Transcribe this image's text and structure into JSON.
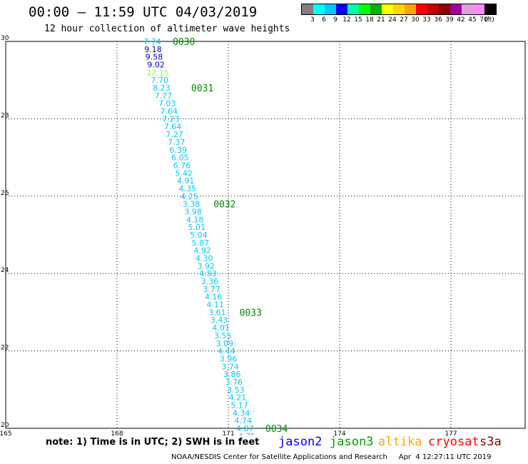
{
  "header": {
    "title": "00:00 – 11:59 UTC 04/03/2019",
    "subtitle": "12 hour collection of altimeter wave heights"
  },
  "color_scale": {
    "colors": [
      "#808080",
      "#00ffff",
      "#00c8ff",
      "#0000ff",
      "#00ffaa",
      "#00ff00",
      "#00b400",
      "#ffff00",
      "#ffd700",
      "#ffa500",
      "#ff0000",
      "#c80000",
      "#8b0000",
      "#a000a0",
      "#dda0dd",
      "#ff88ff",
      "#000000"
    ],
    "labels": [
      "3",
      "6",
      "9",
      "12",
      "15",
      "18",
      "21",
      "24",
      "27",
      "30",
      "33",
      "36",
      "39",
      "42",
      "45",
      "70",
      "(ft)"
    ]
  },
  "chart_data": {
    "type": "scatter",
    "title": "12 hour collection of altimeter wave heights",
    "x_ticks": [
      "165",
      "168",
      "171",
      "174",
      "177"
    ],
    "y_ticks": [
      "20",
      "22",
      "24",
      "26",
      "28",
      "30"
    ],
    "xlim": [
      165,
      179
    ],
    "ylim": [
      20,
      30
    ],
    "grid": true,
    "points": [
      {
        "lon": 168.95,
        "lat": 30.0,
        "value": "7.74",
        "color": "#00c8ff"
      },
      {
        "lon": 168.97,
        "lat": 29.8,
        "value": "9.18",
        "color": "#0000c8"
      },
      {
        "lon": 169.0,
        "lat": 29.6,
        "value": "9.58",
        "color": "#0000c8"
      },
      {
        "lon": 169.05,
        "lat": 29.4,
        "value": "9.02",
        "color": "#0000c8"
      },
      {
        "lon": 169.1,
        "lat": 29.2,
        "value": "12.15",
        "color": "#88ff44"
      },
      {
        "lon": 169.15,
        "lat": 29.0,
        "value": "7.70",
        "color": "#00c8ff"
      },
      {
        "lon": 169.2,
        "lat": 28.8,
        "value": "8.23",
        "color": "#00c8ff"
      },
      {
        "lon": 169.25,
        "lat": 28.6,
        "value": "7.77",
        "color": "#00c8ff"
      },
      {
        "lon": 169.35,
        "lat": 28.4,
        "value": "7.03",
        "color": "#00c8ff"
      },
      {
        "lon": 169.4,
        "lat": 28.2,
        "value": "7.64",
        "color": "#00c8ff"
      },
      {
        "lon": 169.45,
        "lat": 28.0,
        "value": "7.23",
        "color": "#00c8ff"
      },
      {
        "lon": 169.5,
        "lat": 27.8,
        "value": "7.64",
        "color": "#00c8ff"
      },
      {
        "lon": 169.55,
        "lat": 27.6,
        "value": "7.27",
        "color": "#00c8ff"
      },
      {
        "lon": 169.6,
        "lat": 27.4,
        "value": "7.37",
        "color": "#00c8ff"
      },
      {
        "lon": 169.65,
        "lat": 27.2,
        "value": "6.39",
        "color": "#00c8ff"
      },
      {
        "lon": 169.7,
        "lat": 27.0,
        "value": "6.05",
        "color": "#00c8ff"
      },
      {
        "lon": 169.75,
        "lat": 26.8,
        "value": "6.76",
        "color": "#00c8ff"
      },
      {
        "lon": 169.8,
        "lat": 26.6,
        "value": "5.42",
        "color": "#00c8ff"
      },
      {
        "lon": 169.85,
        "lat": 26.4,
        "value": "4.91",
        "color": "#00c8ff"
      },
      {
        "lon": 169.9,
        "lat": 26.2,
        "value": "4.35",
        "color": "#00c8ff"
      },
      {
        "lon": 169.95,
        "lat": 26.0,
        "value": "4.25",
        "color": "#00c8ff"
      },
      {
        "lon": 170.0,
        "lat": 25.8,
        "value": "3.38",
        "color": "#00c8ff"
      },
      {
        "lon": 170.05,
        "lat": 25.6,
        "value": "3.98",
        "color": "#00c8ff"
      },
      {
        "lon": 170.1,
        "lat": 25.4,
        "value": "4.18",
        "color": "#00c8ff"
      },
      {
        "lon": 170.15,
        "lat": 25.2,
        "value": "5.01",
        "color": "#00c8ff"
      },
      {
        "lon": 170.2,
        "lat": 25.0,
        "value": "5.04",
        "color": "#00c8ff"
      },
      {
        "lon": 170.25,
        "lat": 24.8,
        "value": "5.87",
        "color": "#00c8ff"
      },
      {
        "lon": 170.3,
        "lat": 24.6,
        "value": "4.92",
        "color": "#00c8ff"
      },
      {
        "lon": 170.35,
        "lat": 24.4,
        "value": "4.30",
        "color": "#00c8ff"
      },
      {
        "lon": 170.4,
        "lat": 24.2,
        "value": "3.92",
        "color": "#00c8ff"
      },
      {
        "lon": 170.45,
        "lat": 24.0,
        "value": "4.83",
        "color": "#00c8ff"
      },
      {
        "lon": 170.5,
        "lat": 23.8,
        "value": "3.36",
        "color": "#00c8ff"
      },
      {
        "lon": 170.55,
        "lat": 23.6,
        "value": "3.77",
        "color": "#00c8ff"
      },
      {
        "lon": 170.6,
        "lat": 23.4,
        "value": "4.16",
        "color": "#00c8ff"
      },
      {
        "lon": 170.65,
        "lat": 23.2,
        "value": "4.11",
        "color": "#00c8ff"
      },
      {
        "lon": 170.7,
        "lat": 23.0,
        "value": "3.61",
        "color": "#00c8ff"
      },
      {
        "lon": 170.75,
        "lat": 22.8,
        "value": "3.43",
        "color": "#00c8ff"
      },
      {
        "lon": 170.8,
        "lat": 22.6,
        "value": "4.01",
        "color": "#00c8ff"
      },
      {
        "lon": 170.85,
        "lat": 22.4,
        "value": "3.55",
        "color": "#00c8ff"
      },
      {
        "lon": 170.9,
        "lat": 22.2,
        "value": "3.09",
        "color": "#00c8ff"
      },
      {
        "lon": 170.95,
        "lat": 22.0,
        "value": "4.44",
        "color": "#00c8ff"
      },
      {
        "lon": 171.0,
        "lat": 21.8,
        "value": "3.96",
        "color": "#00c8ff"
      },
      {
        "lon": 171.05,
        "lat": 21.6,
        "value": "3.74",
        "color": "#00c8ff"
      },
      {
        "lon": 171.1,
        "lat": 21.4,
        "value": "3.86",
        "color": "#00c8ff"
      },
      {
        "lon": 171.15,
        "lat": 21.2,
        "value": "3.76",
        "color": "#00c8ff"
      },
      {
        "lon": 171.2,
        "lat": 21.0,
        "value": "3.53",
        "color": "#00c8ff"
      },
      {
        "lon": 171.25,
        "lat": 20.8,
        "value": "4.21",
        "color": "#00c8ff"
      },
      {
        "lon": 171.3,
        "lat": 20.6,
        "value": "5.17",
        "color": "#00c8ff"
      },
      {
        "lon": 171.35,
        "lat": 20.4,
        "value": "4.34",
        "color": "#00c8ff"
      },
      {
        "lon": 171.4,
        "lat": 20.2,
        "value": "4.74",
        "color": "#00c8ff"
      },
      {
        "lon": 171.45,
        "lat": 20.0,
        "value": "4.87",
        "color": "#00c8ff"
      },
      {
        "lon": 171.5,
        "lat": 19.8,
        "value": "4.75",
        "color": "#00c8ff"
      }
    ],
    "time_marks": [
      {
        "lon": 169.5,
        "lat": 30.0,
        "label": "0030"
      },
      {
        "lon": 170.0,
        "lat": 28.8,
        "label": "0031"
      },
      {
        "lon": 170.6,
        "lat": 25.8,
        "label": "0032"
      },
      {
        "lon": 171.3,
        "lat": 23.0,
        "label": "0033"
      },
      {
        "lon": 172.0,
        "lat": 20.0,
        "label": "0034"
      }
    ]
  },
  "footer": {
    "note": "note:  1) Time is in UTC;  2) SWH is in feet",
    "satellites": [
      {
        "name": "jason2",
        "color": "#0000ff"
      },
      {
        "name": "jason3",
        "color": "#00a000"
      },
      {
        "name": "altika",
        "color": "#ffa500"
      },
      {
        "name": "cryosat",
        "color": "#ff0000"
      },
      {
        "name": "s3a",
        "color": "#8b0000"
      }
    ],
    "credit": "NOAA/NESDIS Center for Satellite Applications and Research     Apr  4 12:27:11 UTC 2019"
  }
}
